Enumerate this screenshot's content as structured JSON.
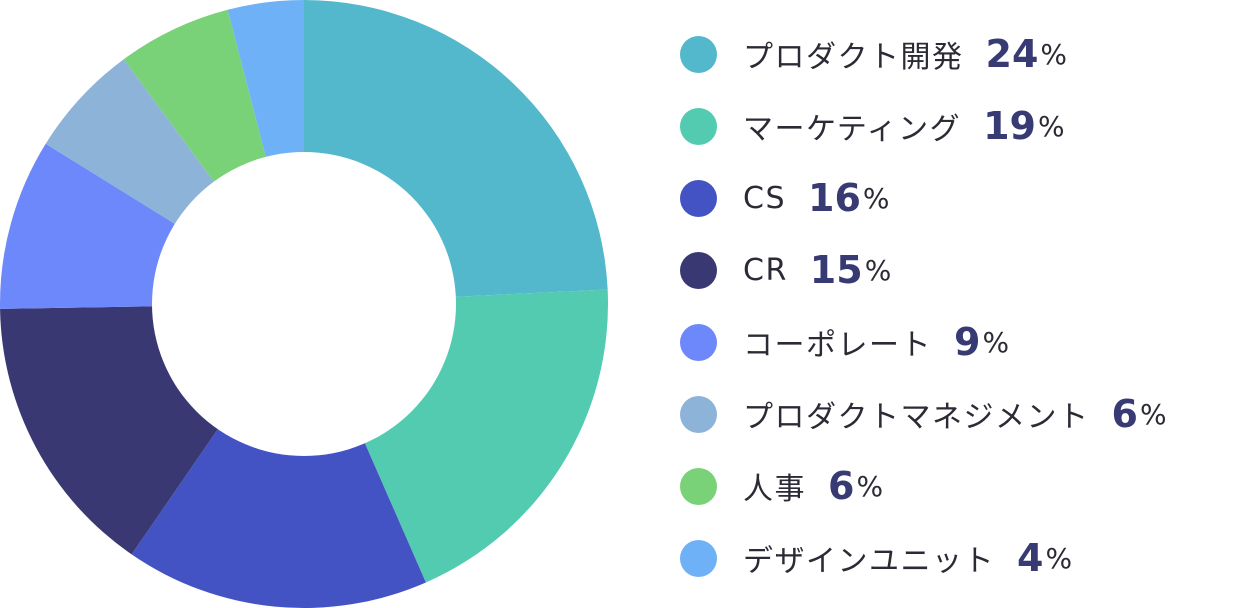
{
  "chart_data": {
    "type": "pie",
    "variant": "donut",
    "unit": "%",
    "title": "",
    "legend_position": "right",
    "slices": [
      {
        "label": "プロダクト開発",
        "value": 24,
        "color": "#53b8cc"
      },
      {
        "label": "マーケティング",
        "value": 19,
        "color": "#53cbb1"
      },
      {
        "label": "CS",
        "value": 16,
        "color": "#4453c4"
      },
      {
        "label": "CR",
        "value": 15,
        "color": "#393872"
      },
      {
        "label": "コーポレート",
        "value": 9,
        "color": "#6d88fa"
      },
      {
        "label": "プロダクトマネジメント",
        "value": 6,
        "color": "#8eb3d8"
      },
      {
        "label": "人事",
        "value": 6,
        "color": "#79d278"
      },
      {
        "label": "デザインユニット",
        "value": 4,
        "color": "#6fb1f7"
      }
    ]
  }
}
